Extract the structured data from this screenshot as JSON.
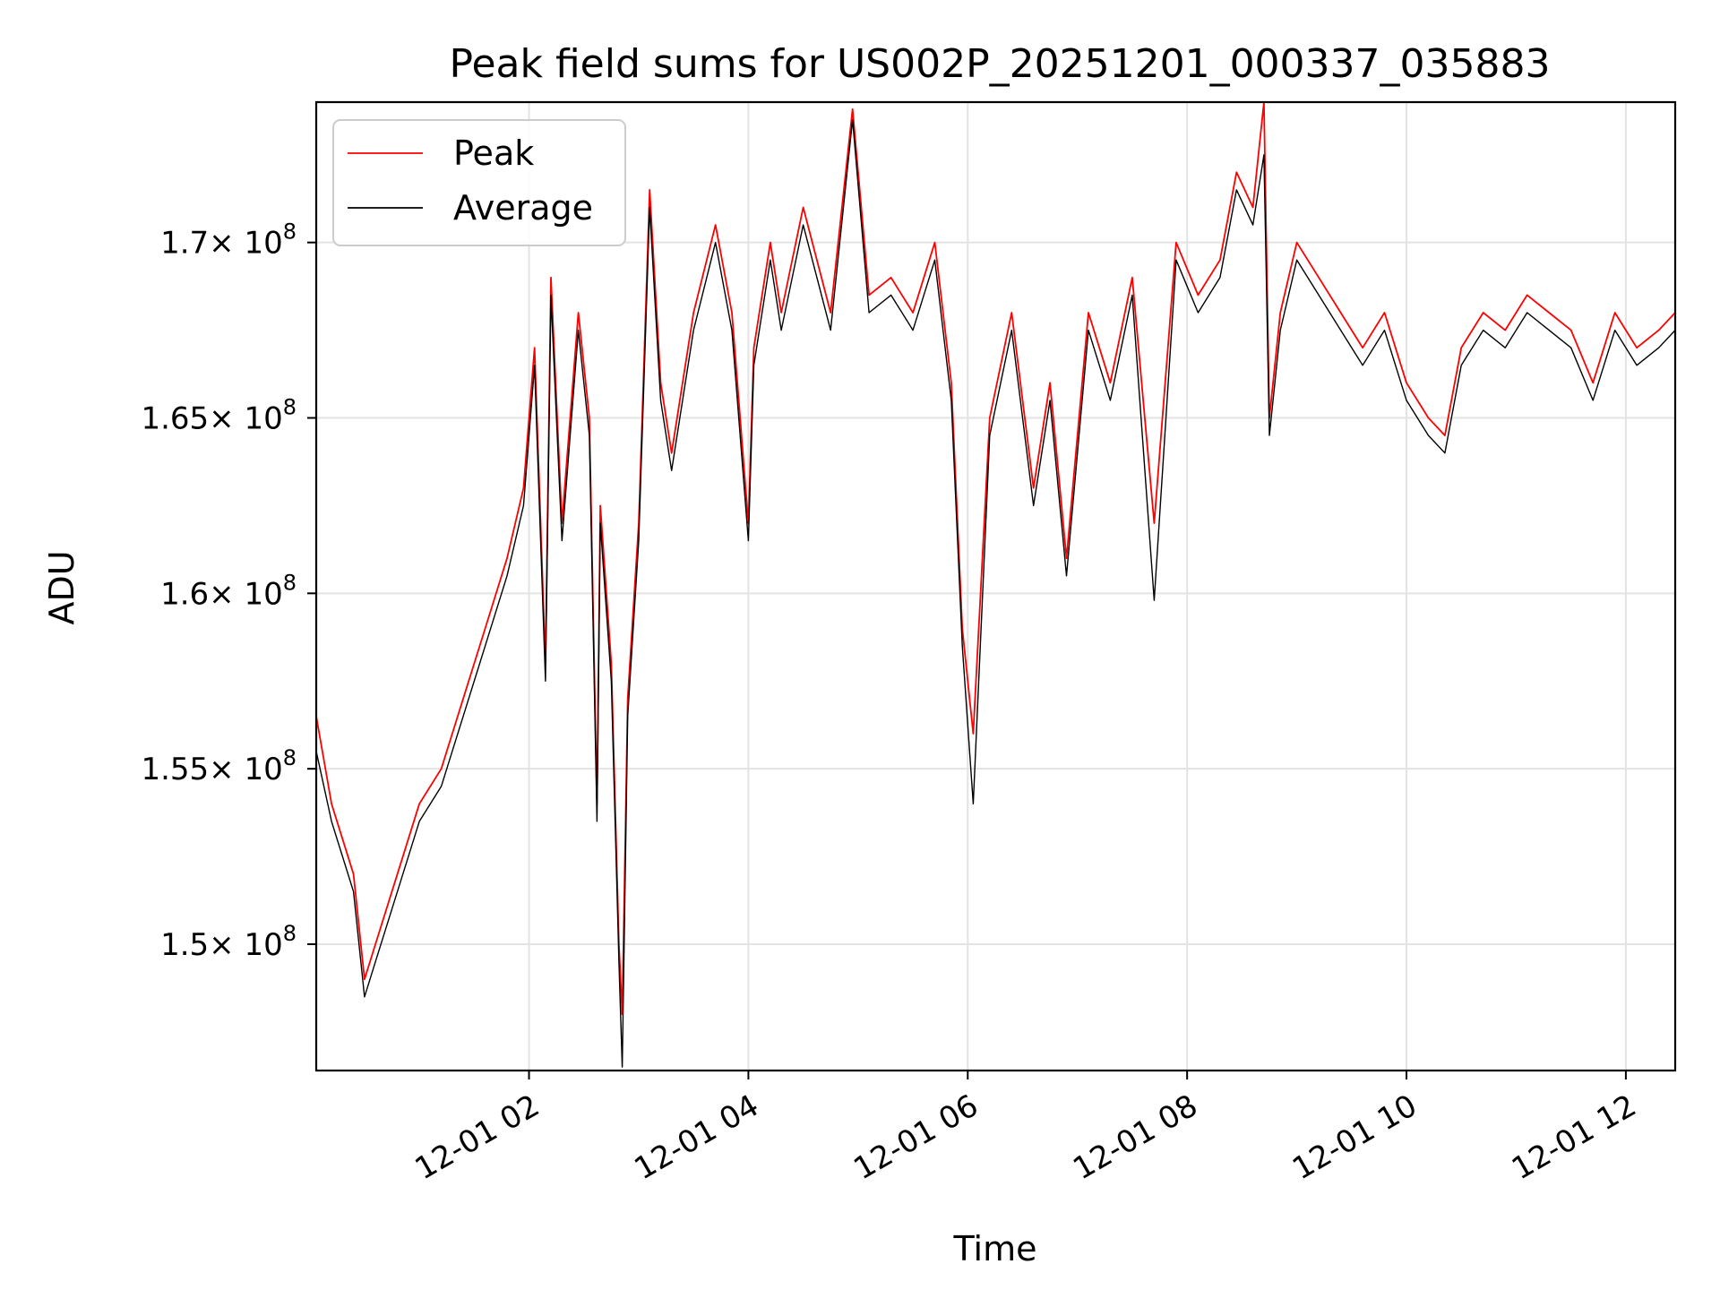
{
  "chart_data": {
    "type": "line",
    "title": "Peak field sums for US002P_20251201_000337_035883",
    "xlabel": "Time",
    "ylabel": "ADU",
    "grid": true,
    "legend_position": "top-left",
    "xlim_hours": [
      0.06,
      12.45
    ],
    "ylim": [
      146400000,
      174000000
    ],
    "x_ticks": [
      {
        "hour": 2,
        "label": "12-01 02"
      },
      {
        "hour": 4,
        "label": "12-01 04"
      },
      {
        "hour": 6,
        "label": "12-01 06"
      },
      {
        "hour": 8,
        "label": "12-01 08"
      },
      {
        "hour": 10,
        "label": "12-01 10"
      },
      {
        "hour": 12,
        "label": "12-01 12"
      }
    ],
    "y_ticks": [
      {
        "value": 150000000,
        "mantissa": "1.5"
      },
      {
        "value": 155000000,
        "mantissa": "1.55"
      },
      {
        "value": 160000000,
        "mantissa": "1.6"
      },
      {
        "value": 165000000,
        "mantissa": "1.65"
      },
      {
        "value": 170000000,
        "mantissa": "1.7"
      }
    ],
    "y_tick_base": "× 10",
    "y_tick_exponent": "8",
    "series": [
      {
        "name": "Peak",
        "color": "#ff0000",
        "x_hours": [
          0.06,
          0.2,
          0.4,
          0.5,
          0.6,
          0.8,
          1.0,
          1.2,
          1.4,
          1.6,
          1.8,
          1.95,
          2.05,
          2.15,
          2.2,
          2.3,
          2.45,
          2.55,
          2.62,
          2.65,
          2.75,
          2.82,
          2.85,
          2.9,
          3.0,
          3.1,
          3.2,
          3.3,
          3.5,
          3.7,
          3.85,
          4.0,
          4.05,
          4.2,
          4.3,
          4.5,
          4.75,
          4.95,
          5.1,
          5.3,
          5.5,
          5.7,
          5.85,
          5.95,
          6.05,
          6.2,
          6.4,
          6.6,
          6.75,
          6.9,
          7.1,
          7.3,
          7.5,
          7.7,
          7.9,
          8.1,
          8.3,
          8.45,
          8.6,
          8.7,
          8.75,
          8.85,
          9.0,
          9.2,
          9.4,
          9.6,
          9.8,
          10.0,
          10.2,
          10.35,
          10.5,
          10.7,
          10.9,
          11.1,
          11.3,
          11.5,
          11.7,
          11.9,
          12.1,
          12.3,
          12.45
        ],
        "values": [
          156500000,
          154000000,
          152000000,
          149000000,
          150000000,
          152000000,
          154000000,
          155000000,
          157000000,
          159000000,
          161000000,
          163000000,
          167000000,
          158000000,
          169000000,
          162000000,
          168000000,
          165000000,
          154000000,
          162500000,
          158000000,
          150000000,
          148000000,
          157000000,
          162000000,
          171500000,
          166000000,
          164000000,
          168000000,
          170500000,
          168000000,
          162000000,
          167000000,
          170000000,
          168000000,
          171000000,
          168000000,
          173800000,
          168500000,
          169000000,
          168000000,
          170000000,
          166000000,
          159000000,
          156000000,
          165000000,
          168000000,
          163000000,
          166000000,
          161000000,
          168000000,
          166000000,
          169000000,
          162000000,
          170000000,
          168500000,
          169500000,
          172000000,
          171000000,
          174000000,
          165000000,
          168000000,
          170000000,
          169000000,
          168000000,
          167000000,
          168000000,
          166000000,
          165000000,
          164500000,
          167000000,
          168000000,
          167500000,
          168500000,
          168000000,
          167500000,
          166000000,
          168000000,
          167000000,
          167500000,
          168000000
        ]
      },
      {
        "name": "Average",
        "color": "#000000",
        "x_hours": [
          0.06,
          0.2,
          0.4,
          0.5,
          0.6,
          0.8,
          1.0,
          1.2,
          1.4,
          1.6,
          1.8,
          1.95,
          2.05,
          2.15,
          2.2,
          2.3,
          2.45,
          2.55,
          2.62,
          2.65,
          2.75,
          2.82,
          2.85,
          2.9,
          3.0,
          3.1,
          3.2,
          3.3,
          3.5,
          3.7,
          3.85,
          4.0,
          4.05,
          4.2,
          4.3,
          4.5,
          4.75,
          4.95,
          5.1,
          5.3,
          5.5,
          5.7,
          5.85,
          5.95,
          6.05,
          6.2,
          6.4,
          6.6,
          6.75,
          6.9,
          7.1,
          7.3,
          7.5,
          7.7,
          7.9,
          8.1,
          8.3,
          8.45,
          8.6,
          8.7,
          8.75,
          8.85,
          9.0,
          9.2,
          9.4,
          9.6,
          9.8,
          10.0,
          10.2,
          10.35,
          10.5,
          10.7,
          10.9,
          11.1,
          11.3,
          11.5,
          11.7,
          11.9,
          12.1,
          12.3,
          12.45
        ],
        "values": [
          155500000,
          153500000,
          151500000,
          148500000,
          149500000,
          151500000,
          153500000,
          154500000,
          156500000,
          158500000,
          160500000,
          162500000,
          166500000,
          157500000,
          168500000,
          161500000,
          167500000,
          164500000,
          153500000,
          162000000,
          157500000,
          149500000,
          146500000,
          156500000,
          161500000,
          171000000,
          165500000,
          163500000,
          167500000,
          170000000,
          167500000,
          161500000,
          166500000,
          169500000,
          167500000,
          170500000,
          167500000,
          173500000,
          168000000,
          168500000,
          167500000,
          169500000,
          165500000,
          158500000,
          154000000,
          164500000,
          167500000,
          162500000,
          165500000,
          160500000,
          167500000,
          165500000,
          168500000,
          159800000,
          169500000,
          168000000,
          169000000,
          171500000,
          170500000,
          172500000,
          164500000,
          167500000,
          169500000,
          168500000,
          167500000,
          166500000,
          167500000,
          165500000,
          164500000,
          164000000,
          166500000,
          167500000,
          167000000,
          168000000,
          167500000,
          167000000,
          165500000,
          167500000,
          166500000,
          167000000,
          167500000
        ]
      }
    ]
  }
}
